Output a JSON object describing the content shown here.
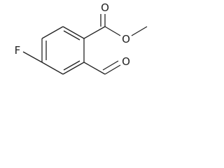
{
  "atoms": [
    {
      "label": "F"
    },
    {
      "label": "O"
    },
    {
      "label": "O"
    },
    {
      "label": "O"
    }
  ]
}
